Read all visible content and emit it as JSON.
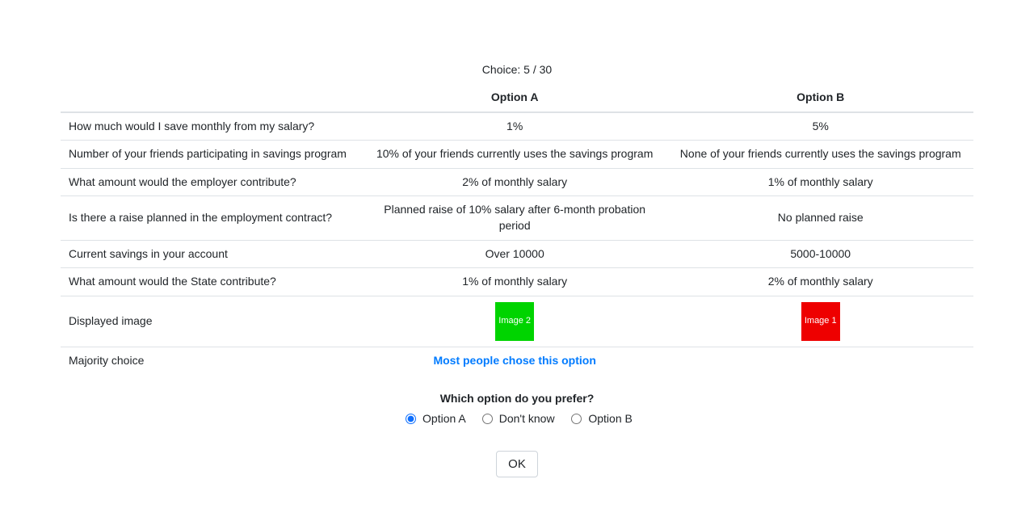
{
  "progress": {
    "label": "Choice:",
    "current": 5,
    "total": 30,
    "text": "Choice: 5 / 30"
  },
  "headers": {
    "attr": "",
    "optA": "Option A",
    "optB": "Option B"
  },
  "rows": [
    {
      "attr": "How much would I save monthly from my salary?",
      "a": "1%",
      "b": "5%"
    },
    {
      "attr": "Number of your friends participating in savings program",
      "a": "10% of your friends currently uses the savings program",
      "b": "None of your friends currently uses the savings program"
    },
    {
      "attr": "What amount would the employer contribute?",
      "a": "2% of monthly salary",
      "b": "1% of monthly salary"
    },
    {
      "attr": "Is there a raise planned in the employment contract?",
      "a": "Planned raise of 10% salary after 6-month probation period",
      "b": "No planned raise"
    },
    {
      "attr": "Current savings in your account",
      "a": "Over 10000",
      "b": "5000-10000"
    },
    {
      "attr": "What amount would the State contribute?",
      "a": "1% of monthly salary",
      "b": "2% of monthly salary"
    }
  ],
  "image_row": {
    "attr": "Displayed image",
    "a": {
      "label": "Image 2",
      "bg": "#00d400"
    },
    "b": {
      "label": "Image 1",
      "bg": "#ee0000"
    }
  },
  "majority_row": {
    "attr": "Majority choice",
    "text": "Most people chose this option",
    "column": "a"
  },
  "question": "Which option do you prefer?",
  "options": {
    "a": "Option A",
    "dk": "Don't know",
    "b": "Option B",
    "selected": "a"
  },
  "ok_label": "OK",
  "colors": {
    "border": "#dee2e6",
    "link": "#007bff",
    "text": "#212529",
    "background": "#ffffff"
  }
}
